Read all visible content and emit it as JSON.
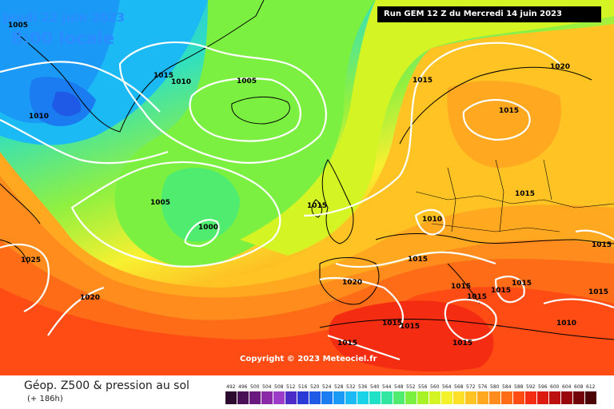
{
  "header": {
    "date_line": "Jeudi 22 juin 2023",
    "time_line": "8:00 locale",
    "run_info": "Run GEM 12 Z du Mercredi 14 juin 2023"
  },
  "footer": {
    "title": "Géop. Z500 & pression au sol",
    "subtitle": "(+ 186h)",
    "copyright": "Copyright © 2023 Meteociel.fr"
  },
  "legend": {
    "values": [
      "492",
      "496",
      "500",
      "504",
      "508",
      "512",
      "516",
      "520",
      "524",
      "528",
      "532",
      "536",
      "540",
      "544",
      "548",
      "552",
      "556",
      "560",
      "564",
      "568",
      "572",
      "576",
      "580",
      "584",
      "588",
      "592",
      "596",
      "600",
      "604",
      "608",
      "612"
    ],
    "colors": [
      "#2b0a2e",
      "#4a1056",
      "#6a1a7e",
      "#8a2aa6",
      "#9c3cc8",
      "#4b2cc6",
      "#2a3ad6",
      "#1e5ae6",
      "#1a7cf0",
      "#1a9af6",
      "#1cbaf4",
      "#1cd2e8",
      "#20e0c8",
      "#30e6a0",
      "#50ec70",
      "#7cf040",
      "#a8f228",
      "#d4f424",
      "#f4f22a",
      "#ffe028",
      "#ffc424",
      "#ffa820",
      "#ff8c1c",
      "#ff6c18",
      "#ff4c14",
      "#f42c12",
      "#dc1a10",
      "#bc100e",
      "#98080c",
      "#700408",
      "#4a0204"
    ]
  },
  "isobars": [
    {
      "label": "1005"
    },
    {
      "label": "1010"
    },
    {
      "label": "1015"
    },
    {
      "label": "1010"
    },
    {
      "label": "1005"
    },
    {
      "label": "1005"
    },
    {
      "label": "1000"
    },
    {
      "label": "1025"
    },
    {
      "label": "1020"
    },
    {
      "label": "1015"
    },
    {
      "label": "1020"
    },
    {
      "label": "1015"
    },
    {
      "label": "1015"
    },
    {
      "label": "1015"
    },
    {
      "label": "1010"
    },
    {
      "label": "1015"
    },
    {
      "label": "1020"
    },
    {
      "label": "1015"
    },
    {
      "label": "1015"
    },
    {
      "label": "1015"
    },
    {
      "label": "1015"
    },
    {
      "label": "1015"
    },
    {
      "label": "1015"
    },
    {
      "label": "1015"
    },
    {
      "label": "1015"
    },
    {
      "label": "1015"
    },
    {
      "label": "1015"
    },
    {
      "label": "1010"
    }
  ]
}
